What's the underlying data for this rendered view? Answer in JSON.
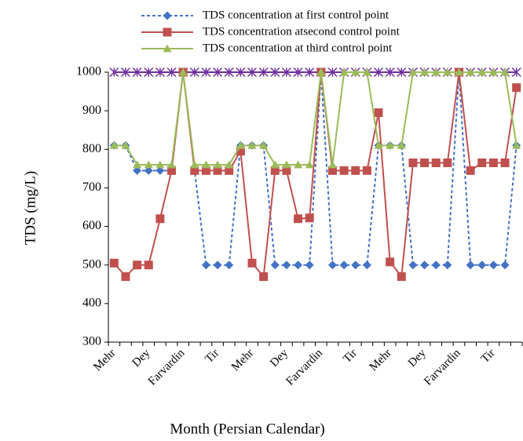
{
  "chart_data": {
    "type": "line",
    "x_label": "Month (Persian Calendar)",
    "y_label": "TDS (mg/L)",
    "categories": [
      "Mehr",
      null,
      null,
      "Dey",
      null,
      null,
      "Farvardin",
      null,
      null,
      "Tir",
      null,
      null,
      "Mehr",
      null,
      null,
      "Dey",
      null,
      null,
      "Farvardin",
      null,
      null,
      "Tir",
      null,
      null,
      "Mehr",
      null,
      null,
      "Dey",
      null,
      null,
      "Farvardin",
      null,
      null,
      "Tir",
      null,
      null
    ],
    "series": [
      {
        "name": "TDS concentration at first control point",
        "color": "#4472c4",
        "marker": "diamond",
        "dashed": true,
        "values": [
          810,
          810,
          745,
          745,
          745,
          745,
          1000,
          745,
          500,
          500,
          500,
          810,
          810,
          810,
          500,
          500,
          500,
          500,
          1000,
          500,
          500,
          500,
          500,
          810,
          810,
          810,
          500,
          500,
          500,
          500,
          1000,
          500,
          500,
          500,
          500,
          810
        ]
      },
      {
        "name": "TDS concentration atsecond control point",
        "color": "#c0504d",
        "marker": "square",
        "dashed": false,
        "values": [
          505,
          470,
          500,
          500,
          620,
          745,
          1000,
          745,
          745,
          745,
          745,
          795,
          505,
          470,
          745,
          745,
          620,
          622,
          1000,
          745,
          745,
          745,
          745,
          895,
          508,
          470,
          765,
          765,
          765,
          765,
          1000,
          745,
          765,
          765,
          765,
          960
        ]
      },
      {
        "name": "TDS concentration at third control point",
        "color": "#9bbb59",
        "marker": "triangle",
        "dashed": false,
        "values": [
          810,
          810,
          760,
          760,
          760,
          760,
          1000,
          760,
          760,
          760,
          760,
          810,
          810,
          810,
          760,
          760,
          760,
          760,
          1000,
          760,
          1000,
          1000,
          1000,
          810,
          810,
          810,
          1000,
          1000,
          1000,
          1000,
          1000,
          1000,
          1000,
          1000,
          1000,
          810
        ]
      },
      {
        "color": "#7030a0",
        "marker": "x",
        "dashed": false,
        "values": [
          1000,
          1000,
          1000,
          1000,
          1000,
          1000,
          1000,
          1000,
          1000,
          1000,
          1000,
          1000,
          1000,
          1000,
          1000,
          1000,
          1000,
          1000,
          1000,
          1000,
          1000,
          1000,
          1000,
          1000,
          1000,
          1000,
          1000,
          1000,
          1000,
          1000,
          1000,
          1000,
          1000,
          1000,
          1000,
          1000
        ]
      }
    ],
    "ylim": [
      300,
      1000
    ],
    "yticks": [
      300,
      400,
      500,
      600,
      700,
      800,
      900,
      1000
    ],
    "grid": false,
    "legend": "top"
  }
}
